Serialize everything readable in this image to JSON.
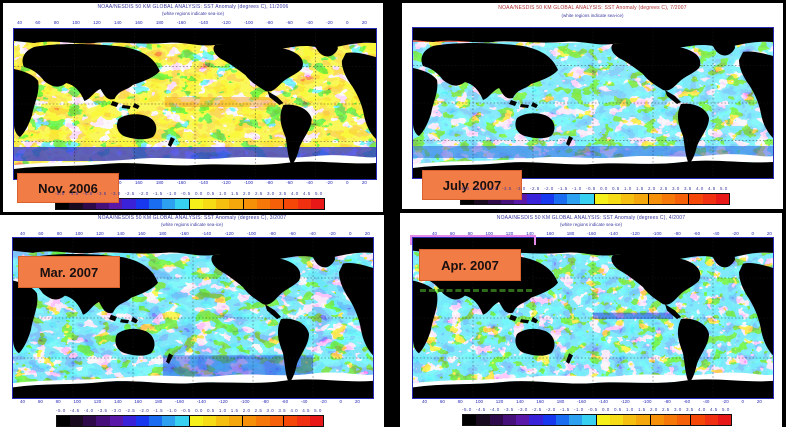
{
  "figure": {
    "description": "Four global sea surface temperature anomaly maps",
    "panels": [
      {
        "id": "nov-2006",
        "date_label": "Nov. 2006",
        "title": "NOAA/NESDIS 50 KM GLOBAL ANALYSIS: SST Anomaly (degrees C), 11/2006",
        "subtitle": "(white regions indicate sea-ice)",
        "lon_ticks": [
          "40",
          "60",
          "80",
          "100",
          "120",
          "140",
          "160",
          "180",
          "-160",
          "-140",
          "-120",
          "-100",
          "-80",
          "-60",
          "-40",
          "-20",
          "0",
          "20"
        ],
        "lat_ticks": [
          "80",
          "60",
          "40",
          "20",
          "0",
          "-20",
          "-40",
          "-60"
        ]
      },
      {
        "id": "july-2007",
        "date_label": "July 2007",
        "title": "NOAA/NESDIS 50 KM GLOBAL ANALYSIS: SST Anomaly (degrees C), 7/2007",
        "subtitle": "(white regions indicate sea-ice)",
        "lon_ticks": [
          "40",
          "60",
          "80",
          "100",
          "120",
          "140",
          "160",
          "180",
          "-160",
          "-140",
          "-120",
          "-100",
          "-80",
          "-60",
          "-40",
          "-20",
          "0",
          "20"
        ],
        "lat_ticks": [
          "80",
          "60",
          "40",
          "20",
          "0",
          "-20",
          "-40",
          "-60"
        ]
      },
      {
        "id": "mar-2007",
        "date_label": "Mar. 2007",
        "title": "NOAA/NESDIS 50 KM GLOBAL ANALYSIS: SST Anomaly (degrees C), 3/2007",
        "subtitle": "(white regions indicate sea-ice)",
        "lon_ticks": [
          "40",
          "60",
          "80",
          "100",
          "120",
          "140",
          "160",
          "180",
          "-160",
          "-140",
          "-120",
          "-100",
          "-80",
          "-60",
          "-40",
          "-20",
          "0",
          "20"
        ],
        "lat_ticks": [
          "80",
          "60",
          "40",
          "20",
          "0",
          "-20",
          "-40",
          "-60"
        ]
      },
      {
        "id": "apr-2007",
        "date_label": "Apr. 2007",
        "title": "NOAA/NESDIS 50 KM GLOBAL ANALYSIS: SST Anomaly (degrees C), 4/2007",
        "subtitle": "(white regions indicate sea-ice)",
        "lon_ticks": [
          "40",
          "60",
          "80",
          "100",
          "120",
          "140",
          "160",
          "180",
          "-160",
          "-140",
          "-120",
          "-100",
          "-80",
          "-60",
          "-40",
          "-20",
          "0",
          "20"
        ],
        "lat_ticks": [
          "80",
          "60",
          "40",
          "20",
          "0",
          "-20",
          "-40",
          "-60"
        ]
      }
    ],
    "colorbar": {
      "labels": [
        "-5.0",
        "-4.5",
        "-4.0",
        "-3.5",
        "-3.0",
        "-2.5",
        "-2.0",
        "-1.5",
        "-1.0",
        "-0.5",
        "0.0",
        "0.5",
        "1.0",
        "1.5",
        "2.0",
        "2.5",
        "3.0",
        "3.5",
        "4.0",
        "4.5",
        "5.0"
      ],
      "colors": [
        "#000000",
        "#1a0a20",
        "#2e0a4a",
        "#46107a",
        "#5a18a8",
        "#3a22d8",
        "#1838f0",
        "#1a6cf0",
        "#2ea0f0",
        "#38d0f0",
        "#f5f01a",
        "#f5dc14",
        "#f5c010",
        "#f5a80c",
        "#f59008",
        "#f57808",
        "#f56008",
        "#f54808",
        "#f03010",
        "#e81818"
      ]
    },
    "colors": {
      "land": "#000000",
      "ice": "#ffffff",
      "label_bg": "#f27c45",
      "frame": "#2a2ab8",
      "dashed_box": "#2f6a1a",
      "highlight_box": "#e58ae8"
    }
  }
}
